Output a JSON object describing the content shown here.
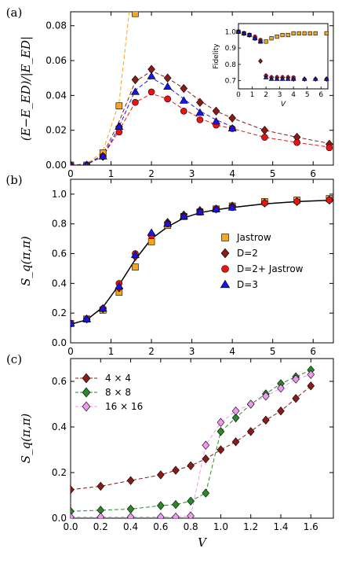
{
  "colors": {
    "jastrow": "#f5a623",
    "d2": "#8b1a1a",
    "d2j": "#ee1111",
    "d3": "#1515ee",
    "c4": "#8b1a1a",
    "c8": "#2a8a2a",
    "c16": "#ee99ee"
  },
  "chart_data": [
    {
      "type": "scatter",
      "panel_label": "(a)",
      "ylabel": "(E−E_ED)/|E_ED|",
      "xlim": [
        0,
        6.5
      ],
      "ylim": [
        0,
        0.088
      ],
      "xticks": [
        "0",
        "1",
        "2",
        "3",
        "4",
        "5",
        "6"
      ],
      "yticks": [
        "0.00",
        "0.02",
        "0.04",
        "0.06",
        "0.08"
      ],
      "series": [
        {
          "key": "jastrow",
          "marker": "square",
          "x": [
            0.0,
            0.4,
            0.8,
            1.2,
            1.6
          ],
          "y": [
            0.0,
            0.0,
            0.007,
            0.034,
            0.087
          ],
          "fit": [
            [
              0,
              0
            ],
            [
              0.4,
              0.0005
            ],
            [
              0.8,
              0.008
            ],
            [
              1.2,
              0.036
            ],
            [
              1.45,
              0.088
            ]
          ]
        },
        {
          "key": "d2",
          "marker": "diamond",
          "x": [
            0.0,
            0.4,
            0.8,
            1.2,
            1.6,
            2.0,
            2.4,
            2.8,
            3.2,
            3.6,
            4.0,
            4.8,
            5.6,
            6.4
          ],
          "y": [
            0.0,
            0.0,
            0.005,
            0.022,
            0.049,
            0.055,
            0.05,
            0.044,
            0.036,
            0.031,
            0.027,
            0.02,
            0.016,
            0.012
          ],
          "fit": [
            [
              0,
              0
            ],
            [
              0.4,
              0.0005
            ],
            [
              0.8,
              0.006
            ],
            [
              1.2,
              0.025
            ],
            [
              1.6,
              0.048
            ],
            [
              2.0,
              0.054
            ],
            [
              2.4,
              0.05
            ],
            [
              2.8,
              0.044
            ],
            [
              3.2,
              0.037
            ],
            [
              3.6,
              0.031
            ],
            [
              4.0,
              0.027
            ],
            [
              4.8,
              0.02
            ],
            [
              5.6,
              0.016
            ],
            [
              6.5,
              0.012
            ]
          ]
        },
        {
          "key": "d2j",
          "marker": "circle",
          "x": [
            0.0,
            0.4,
            0.8,
            1.2,
            1.6,
            2.0,
            2.4,
            2.8,
            3.2,
            3.6,
            4.0,
            4.8,
            5.6,
            6.4
          ],
          "y": [
            0.0,
            0.0,
            0.005,
            0.019,
            0.036,
            0.042,
            0.038,
            0.031,
            0.026,
            0.023,
            0.021,
            0.016,
            0.013,
            0.01
          ],
          "fit": [
            [
              0,
              0
            ],
            [
              0.4,
              0.0005
            ],
            [
              0.8,
              0.005
            ],
            [
              1.2,
              0.02
            ],
            [
              1.6,
              0.036
            ],
            [
              2.0,
              0.041
            ],
            [
              2.4,
              0.038
            ],
            [
              2.8,
              0.032
            ],
            [
              3.2,
              0.027
            ],
            [
              3.6,
              0.023
            ],
            [
              4.0,
              0.021
            ],
            [
              4.8,
              0.016
            ],
            [
              5.6,
              0.013
            ],
            [
              6.5,
              0.01
            ]
          ]
        },
        {
          "key": "d3",
          "marker": "triangle",
          "x": [
            0.0,
            0.4,
            0.8,
            1.2,
            1.6,
            2.0,
            2.4,
            2.8,
            3.2,
            3.6,
            4.0
          ],
          "y": [
            0.0,
            0.0,
            0.005,
            0.022,
            0.042,
            0.051,
            0.045,
            0.037,
            0.03,
            0.025,
            0.021
          ],
          "fit": [
            [
              0,
              0
            ],
            [
              0.4,
              0.0005
            ],
            [
              0.8,
              0.005
            ],
            [
              1.2,
              0.022
            ],
            [
              1.6,
              0.043
            ],
            [
              2.0,
              0.05
            ],
            [
              2.4,
              0.045
            ],
            [
              2.8,
              0.038
            ],
            [
              3.2,
              0.031
            ],
            [
              3.6,
              0.026
            ],
            [
              4.0,
              0.022
            ]
          ]
        }
      ],
      "inset": {
        "ylabel": "Fidelity",
        "xlabel": "V",
        "xlim": [
          0,
          6.5
        ],
        "ylim": [
          0.65,
          1.05
        ],
        "xticks": [
          "0",
          "1",
          "2",
          "3",
          "4",
          "5",
          "6"
        ],
        "yticks": [
          "0.7",
          "0.8",
          "0.9",
          "1.0"
        ],
        "series": [
          {
            "key": "jastrow",
            "marker": "square",
            "x": [
              0.0,
              0.4,
              0.8,
              1.2,
              1.6,
              2.0,
              2.4,
              2.8,
              3.2,
              3.6,
              4.0,
              4.4,
              4.8,
              5.2,
              5.6,
              6.4
            ],
            "y": [
              1.0,
              0.99,
              0.98,
              0.96,
              0.94,
              0.94,
              0.96,
              0.97,
              0.98,
              0.98,
              0.99,
              0.99,
              0.99,
              0.99,
              0.99,
              0.99
            ]
          },
          {
            "key": "d2",
            "marker": "diamond",
            "x": [
              0.0,
              0.4,
              0.8,
              1.2,
              1.6,
              2.0,
              2.4,
              2.8,
              3.2,
              3.6,
              4.0,
              4.8,
              5.6,
              6.4
            ],
            "y": [
              1.0,
              0.99,
              0.98,
              0.96,
              0.82,
              0.73,
              0.72,
              0.72,
              0.72,
              0.72,
              0.71,
              0.71,
              0.71,
              0.71
            ]
          },
          {
            "key": "d2j",
            "marker": "circle",
            "x": [
              0.0,
              0.4,
              0.8,
              1.2,
              1.6,
              2.0,
              2.4,
              2.8,
              3.2,
              3.6,
              4.0
            ],
            "y": [
              1.0,
              0.99,
              0.98,
              0.97,
              0.95,
              0.73,
              0.72,
              0.72,
              0.72,
              0.72,
              0.72
            ]
          },
          {
            "key": "d3",
            "marker": "triangle",
            "x": [
              0.0,
              0.4,
              0.8,
              1.2,
              1.6,
              2.0,
              2.4,
              2.8,
              3.2,
              3.6,
              4.0,
              4.8,
              5.6,
              6.4
            ],
            "y": [
              1.0,
              0.99,
              0.98,
              0.96,
              0.94,
              0.72,
              0.71,
              0.71,
              0.71,
              0.71,
              0.71,
              0.71,
              0.71,
              0.71
            ]
          }
        ]
      }
    },
    {
      "type": "scatter",
      "panel_label": "(b)",
      "ylabel": "S_q(π,π)",
      "xlim": [
        0,
        6.5
      ],
      "ylim": [
        0,
        1.1
      ],
      "xticks": [
        "0",
        "1",
        "2",
        "3",
        "4",
        "5",
        "6"
      ],
      "yticks": [
        "0.0",
        "0.2",
        "0.4",
        "0.6",
        "0.8",
        "1.0"
      ],
      "legend": [
        {
          "key": "jastrow",
          "marker": "square",
          "label": "Jastrow"
        },
        {
          "key": "d2",
          "marker": "diamond",
          "label": "D=2"
        },
        {
          "key": "d2j",
          "marker": "circle",
          "label": "D=2+ Jastrow"
        },
        {
          "key": "d3",
          "marker": "triangle",
          "label": "D=3"
        }
      ],
      "curve": [
        [
          0,
          0.125
        ],
        [
          0.4,
          0.155
        ],
        [
          0.8,
          0.24
        ],
        [
          1.2,
          0.39
        ],
        [
          1.6,
          0.56
        ],
        [
          2.0,
          0.7
        ],
        [
          2.4,
          0.78
        ],
        [
          2.8,
          0.84
        ],
        [
          3.2,
          0.875
        ],
        [
          3.6,
          0.895
        ],
        [
          4.0,
          0.91
        ],
        [
          4.8,
          0.935
        ],
        [
          5.6,
          0.95
        ],
        [
          6.5,
          0.96
        ]
      ],
      "series": [
        {
          "key": "jastrow",
          "marker": "square",
          "x": [
            0.0,
            0.4,
            0.8,
            1.2,
            1.6,
            2.0,
            2.4,
            2.8,
            3.2,
            3.6,
            4.0,
            4.8,
            5.6,
            6.4
          ],
          "y": [
            0.13,
            0.16,
            0.22,
            0.34,
            0.51,
            0.68,
            0.79,
            0.85,
            0.88,
            0.9,
            0.92,
            0.95,
            0.96,
            0.97
          ]
        },
        {
          "key": "d2",
          "marker": "diamond",
          "x": [
            0.0,
            0.4,
            0.8,
            1.2,
            1.6,
            2.0,
            2.4,
            2.8,
            3.2,
            3.6,
            4.0,
            4.8,
            5.6,
            6.4
          ],
          "y": [
            0.13,
            0.16,
            0.23,
            0.37,
            0.58,
            0.73,
            0.81,
            0.86,
            0.89,
            0.9,
            0.92,
            0.94,
            0.95,
            0.96
          ]
        },
        {
          "key": "d2j",
          "marker": "circle",
          "x": [
            0.0,
            0.4,
            0.8,
            1.2,
            1.6,
            2.0,
            2.4,
            2.8,
            3.2,
            3.6,
            4.0,
            4.8,
            5.6,
            6.4
          ],
          "y": [
            0.13,
            0.16,
            0.23,
            0.4,
            0.6,
            0.72,
            0.8,
            0.85,
            0.88,
            0.9,
            0.91,
            0.94,
            0.95,
            0.96
          ]
        },
        {
          "key": "d3",
          "marker": "triangle",
          "x": [
            0.0,
            0.4,
            0.8,
            1.2,
            1.6,
            2.0,
            2.4,
            2.8,
            3.2,
            3.6,
            4.0
          ],
          "y": [
            0.13,
            0.16,
            0.23,
            0.38,
            0.59,
            0.74,
            0.8,
            0.85,
            0.88,
            0.9,
            0.91
          ]
        }
      ]
    },
    {
      "type": "scatter",
      "panel_label": "(c)",
      "ylabel": "S_q(π,π)",
      "xlabel": "V",
      "xlim": [
        0,
        1.75
      ],
      "ylim": [
        0,
        0.7
      ],
      "xticks": [
        "0.0",
        "0.2",
        "0.4",
        "0.6",
        "0.8",
        "1.0",
        "1.2",
        "1.4",
        "1.6"
      ],
      "yticks": [
        "0.0",
        "0.2",
        "0.4",
        "0.6"
      ],
      "legend": [
        {
          "key": "c4",
          "marker": "diamond",
          "label": "4 × 4"
        },
        {
          "key": "c8",
          "marker": "diamond",
          "label": "8 × 8"
        },
        {
          "key": "c16",
          "marker": "diamond",
          "label": "16 × 16"
        }
      ],
      "series": [
        {
          "key": "c4",
          "marker": "diamond",
          "x": [
            0.0,
            0.2,
            0.4,
            0.6,
            0.7,
            0.8,
            0.9,
            1.0,
            1.1,
            1.2,
            1.3,
            1.4,
            1.5,
            1.6
          ],
          "y": [
            0.125,
            0.14,
            0.165,
            0.19,
            0.21,
            0.23,
            0.26,
            0.3,
            0.335,
            0.38,
            0.43,
            0.47,
            0.525,
            0.58
          ]
        },
        {
          "key": "c8",
          "marker": "diamond",
          "x": [
            0.0,
            0.2,
            0.4,
            0.6,
            0.7,
            0.8,
            0.9,
            1.0,
            1.1,
            1.2,
            1.3,
            1.4,
            1.5,
            1.6
          ],
          "y": [
            0.03,
            0.035,
            0.04,
            0.055,
            0.06,
            0.075,
            0.11,
            0.38,
            0.44,
            0.5,
            0.545,
            0.59,
            0.62,
            0.65
          ]
        },
        {
          "key": "c16",
          "marker": "diamond",
          "x": [
            0.0,
            0.2,
            0.4,
            0.6,
            0.7,
            0.8,
            0.9,
            1.0,
            1.1,
            1.2,
            1.3,
            1.4,
            1.5,
            1.6
          ],
          "y": [
            0.005,
            0.005,
            0.005,
            0.005,
            0.005,
            0.01,
            0.32,
            0.42,
            0.47,
            0.5,
            0.535,
            0.57,
            0.61,
            0.63
          ]
        }
      ]
    }
  ]
}
